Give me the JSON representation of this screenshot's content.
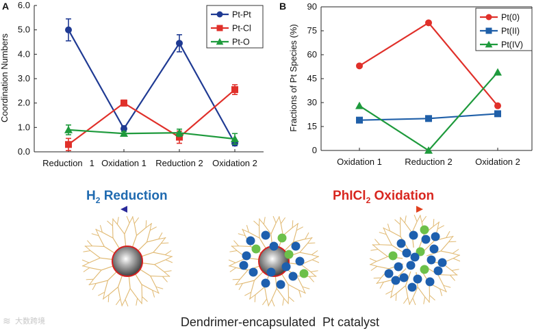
{
  "chart_data": [
    {
      "panel": "A",
      "type": "line",
      "categories": [
        "Reduction 1",
        "Oxidation 1",
        "Reduction 2",
        "Oxidation 2"
      ],
      "ylabel": "Coordination Numbers",
      "ylim": [
        0,
        6
      ],
      "yticks": [
        "0.0",
        "1.0",
        "2.0",
        "3.0",
        "4.0",
        "5.0",
        "6.0"
      ],
      "tick_label_parts": [
        [
          "Reduction",
          "1"
        ],
        [
          "Oxidation 1"
        ],
        [
          "Reduction 2"
        ],
        [
          "Oxidation 2"
        ]
      ],
      "legend_position": "top-right",
      "series": [
        {
          "name": "Pt-Pt",
          "color": "#1f3a93",
          "marker": "circle",
          "values": [
            5.0,
            0.95,
            4.45,
            0.35
          ],
          "errors": [
            0.45,
            0.12,
            0.35,
            0.1
          ]
        },
        {
          "name": "Pt-Cl",
          "color": "#e0302a",
          "marker": "square",
          "values": [
            0.3,
            2.0,
            0.6,
            2.55
          ],
          "errors": [
            0.25,
            0.12,
            0.25,
            0.2
          ]
        },
        {
          "name": "Pt-O",
          "color": "#1e9a3c",
          "marker": "triangle",
          "values": [
            0.9,
            0.75,
            0.78,
            0.53
          ],
          "errors": [
            0.2,
            0.08,
            0.15,
            0.22
          ]
        }
      ]
    },
    {
      "panel": "B",
      "type": "line",
      "categories": [
        "Oxidation 1",
        "Reduction 2",
        "Oxidation 2"
      ],
      "ylabel": "Fractions of Pt Species (%)",
      "ylim": [
        0,
        90
      ],
      "yticks": [
        "0",
        "15",
        "30",
        "45",
        "60",
        "75",
        "90"
      ],
      "legend_position": "top-right",
      "series": [
        {
          "name": "Pt(0)",
          "color": "#e0302a",
          "marker": "circle",
          "values": [
            53,
            80,
            28
          ]
        },
        {
          "name": "Pt(II)",
          "color": "#1f5fa8",
          "marker": "square",
          "values": [
            19,
            20,
            23
          ]
        },
        {
          "name": "Pt(IV)",
          "color": "#1e9a3c",
          "marker": "triangle",
          "values": [
            28,
            0,
            49
          ]
        }
      ]
    }
  ],
  "panel_labels": {
    "a": "A",
    "b": "B"
  },
  "scheme": {
    "reduction_label": {
      "prefix": "H",
      "sub": "2",
      "suffix": " Reduction",
      "color": "#1f6ab0"
    },
    "oxidation_label": {
      "prefix": "PhICl",
      "sub": "2",
      "suffix": " Oxidation",
      "color": "#d8261f"
    },
    "caption": "Dendrimer-encapsulated  Pt catalyst",
    "dendrimer_color": "#e0b870",
    "pt_core_color": "#b0b0b0",
    "blue_species_color": "#1d5fae",
    "green_species_color": "#6cc04a"
  },
  "watermark": {
    "text": "大数跨境",
    "symbol": "≋"
  }
}
